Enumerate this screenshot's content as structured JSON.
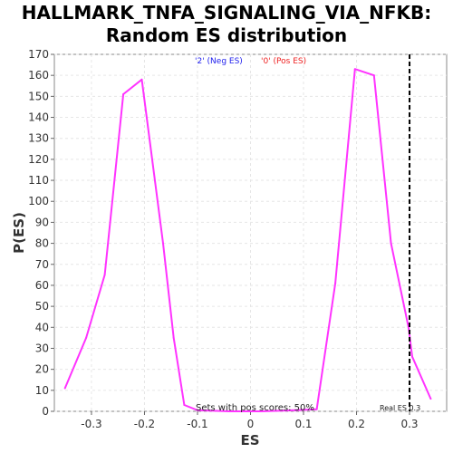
{
  "chart_data": {
    "type": "line",
    "title_lines": [
      "HALLMARK_TNFA_SIGNALING_VIA_NFKB:",
      "Random ES distribution"
    ],
    "xlabel": "ES",
    "ylabel": "P(ES)",
    "xlim": [
      -0.37,
      0.37
    ],
    "ylim": [
      0,
      170
    ],
    "x_ticks": [
      -0.3,
      -0.2,
      -0.1,
      0,
      0.1,
      0.2,
      0.3
    ],
    "x_tick_labels": [
      "-0.3",
      "-0.2",
      "-0.1",
      "0",
      "0.1",
      "0.2",
      "0.3"
    ],
    "y_ticks": [
      0,
      10,
      20,
      30,
      40,
      50,
      60,
      70,
      80,
      90,
      100,
      110,
      120,
      130,
      140,
      150,
      160,
      170
    ],
    "grid": true,
    "series": [
      {
        "color": "#ff33ff",
        "points": [
          [
            -0.35,
            11
          ],
          [
            -0.31,
            35
          ],
          [
            -0.275,
            65
          ],
          [
            -0.24,
            151
          ],
          [
            -0.205,
            158
          ],
          [
            -0.165,
            80
          ],
          [
            -0.145,
            35
          ],
          [
            -0.125,
            3
          ],
          [
            -0.1,
            0.5
          ],
          [
            -0.04,
            0
          ],
          [
            0.02,
            0
          ],
          [
            0.085,
            0.5
          ],
          [
            0.125,
            1
          ],
          [
            0.16,
            61
          ],
          [
            0.197,
            163
          ],
          [
            0.233,
            160
          ],
          [
            0.265,
            80
          ],
          [
            0.298,
            40
          ],
          [
            0.305,
            26
          ],
          [
            0.34,
            6
          ]
        ]
      }
    ],
    "legend": [
      {
        "label": "'2' (Neg ES)",
        "color": "#2222ee"
      },
      {
        "label": "'0' (Pos ES)",
        "color": "#ee2222"
      }
    ],
    "real_es": 0.3,
    "real_es_label": "Real ES 0.3",
    "pos_scores_label": "Sets with pos scores: 50%"
  }
}
